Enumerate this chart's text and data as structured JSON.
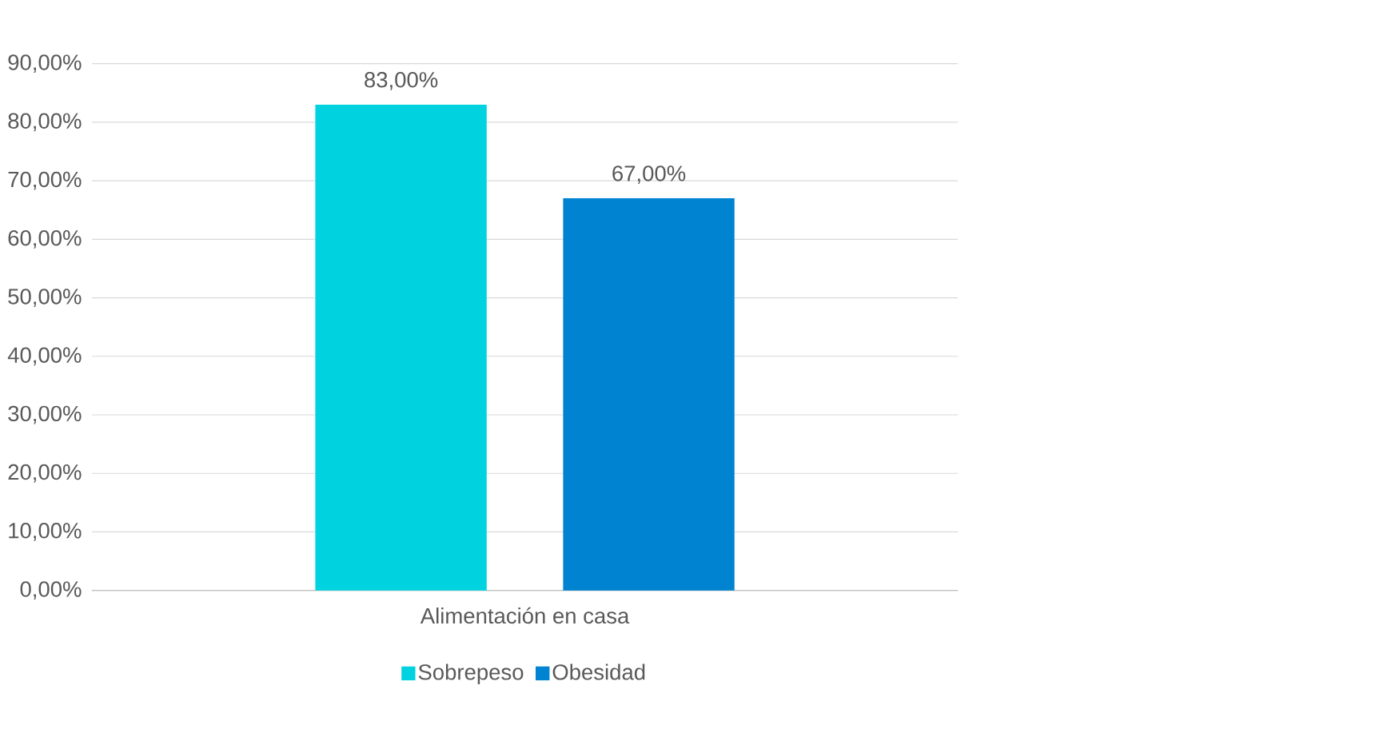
{
  "chart_data": {
    "type": "bar",
    "categories": [
      "Alimentación en casa"
    ],
    "series": [
      {
        "name": "Sobrepeso",
        "color": "#00d3df",
        "values": [
          83
        ],
        "value_labels": [
          "83,00%"
        ]
      },
      {
        "name": "Obesidad",
        "color": "#0083d0",
        "values": [
          67
        ],
        "value_labels": [
          "67,00%"
        ]
      }
    ],
    "ylim": [
      0,
      90
    ],
    "yticks": [
      {
        "value": 0,
        "label": "0,00%"
      },
      {
        "value": 10,
        "label": "10,00%"
      },
      {
        "value": 20,
        "label": "20,00%"
      },
      {
        "value": 30,
        "label": "30,00%"
      },
      {
        "value": 40,
        "label": "40,00%"
      },
      {
        "value": 50,
        "label": "50,00%"
      },
      {
        "value": 60,
        "label": "60,00%"
      },
      {
        "value": 70,
        "label": "70,00%"
      },
      {
        "value": 80,
        "label": "80,00%"
      },
      {
        "value": 90,
        "label": "90,00%"
      }
    ],
    "grid": "y",
    "legend": "bottom"
  }
}
